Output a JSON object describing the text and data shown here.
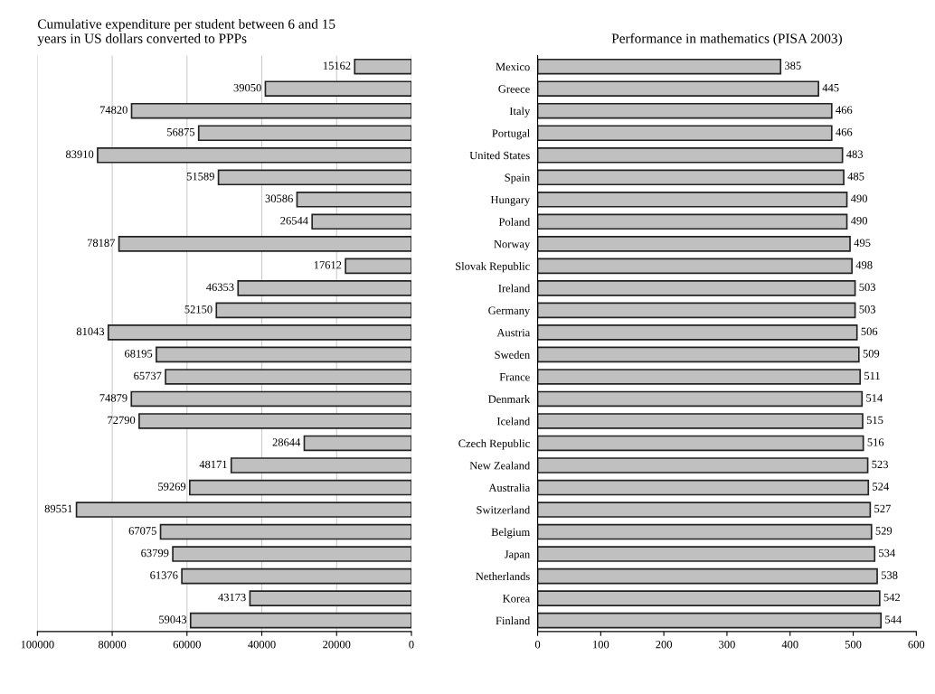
{
  "chart_data": [
    {
      "type": "bar",
      "orientation": "horizontal",
      "title": "Cumulative expenditure per student between 6 and 15\nyears in US dollars converted to PPPs",
      "categories": [
        null,
        null,
        null,
        null,
        null,
        null,
        null,
        null,
        null,
        null,
        null,
        null,
        null,
        null,
        null,
        null,
        null,
        null,
        null,
        null,
        null,
        null,
        null,
        null,
        null,
        null
      ],
      "values": [
        15162,
        39050,
        74820,
        56875,
        83910,
        51589,
        30586,
        26544,
        78187,
        17612,
        46353,
        52150,
        81043,
        68195,
        65737,
        74879,
        72790,
        28644,
        48171,
        59269,
        89551,
        67075,
        63799,
        61376,
        43173,
        59043
      ],
      "color": "#c0c0c0",
      "xlim": [
        100000,
        0
      ],
      "xticks": [
        100000,
        80000,
        60000,
        40000,
        20000,
        0
      ],
      "grid": "x",
      "data_labels": true,
      "tick_labels": "x"
    },
    {
      "type": "bar",
      "orientation": "horizontal",
      "title": "Performance in mathematics (PISA 2003)",
      "categories": [
        "Mexico",
        "Greece",
        "Italy",
        "Portugal",
        "United States",
        "Spain",
        "Hungary",
        "Poland",
        "Norway",
        "Slovak Republic",
        "Ireland",
        "Germany",
        "Austria",
        "Sweden",
        "France",
        "Denmark",
        "Iceland",
        "Czech Republic",
        "New Zealand",
        "Australia",
        "Switzerland",
        "Belgium",
        "Japan",
        "Netherlands",
        "Korea",
        "Finland"
      ],
      "values": [
        385,
        445,
        466,
        466,
        483,
        485,
        490,
        490,
        495,
        498,
        503,
        503,
        506,
        509,
        511,
        514,
        515,
        516,
        523,
        524,
        527,
        529,
        534,
        538,
        542,
        544
      ],
      "color": "#c0c0c0",
      "xlim": [
        0,
        600
      ],
      "xticks": [
        0,
        100,
        200,
        300,
        400,
        500,
        600
      ],
      "data_labels": true
    }
  ]
}
